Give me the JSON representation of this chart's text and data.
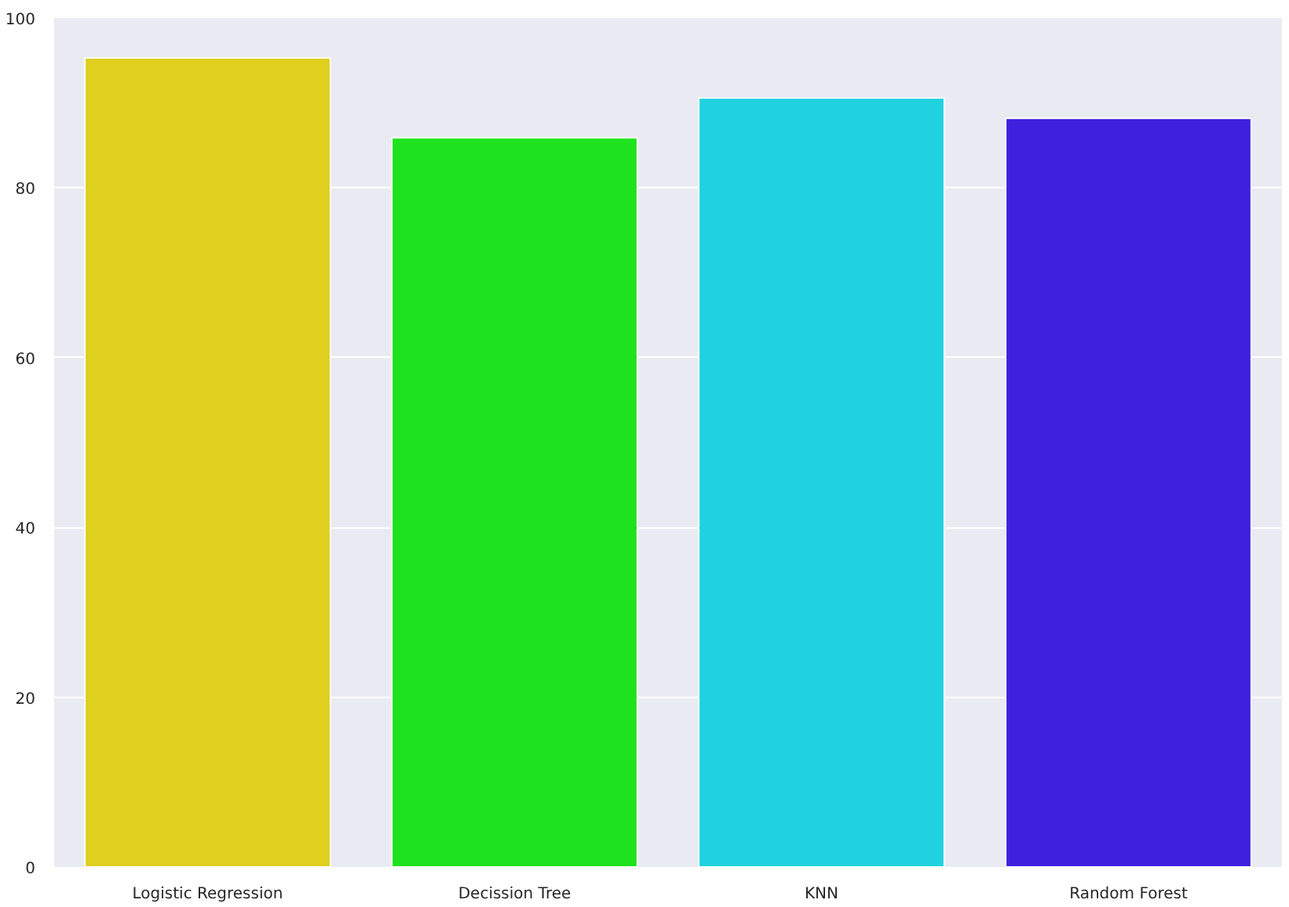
{
  "chart_data": {
    "type": "bar",
    "categories": [
      "Logistic Regression",
      "Decission Tree",
      "KNN",
      "Random Forest"
    ],
    "values": [
      95.3,
      85.9,
      90.6,
      88.2
    ],
    "colors": [
      "#dfcf1f",
      "#1fe21f",
      "#20d2df",
      "#3f20df"
    ],
    "ylim": [
      0,
      100
    ],
    "yticks": [
      0,
      20,
      40,
      60,
      80,
      100
    ],
    "grid": "y"
  }
}
